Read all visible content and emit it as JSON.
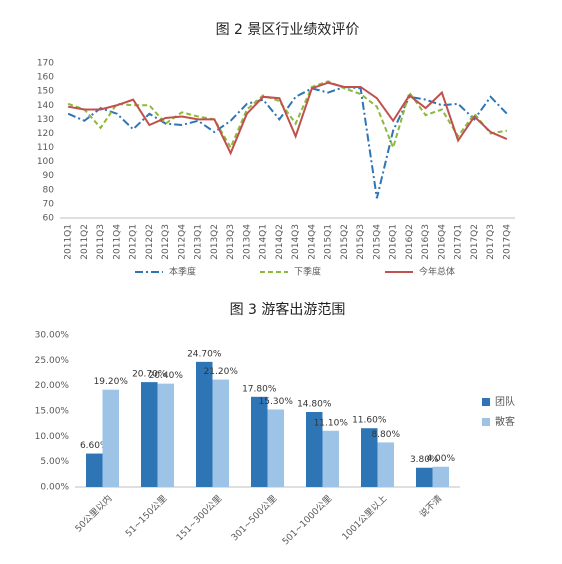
{
  "chart_data": [
    {
      "type": "line",
      "title": "图 2 景区行业绩效评价",
      "categories": [
        "2011Q1",
        "2011Q2",
        "2011Q3",
        "2011Q4",
        "2012Q1",
        "2012Q2",
        "2012Q3",
        "2012Q4",
        "2013Q1",
        "2013Q2",
        "2013Q3",
        "2013Q4",
        "2014Q1",
        "2014Q2",
        "2014Q3",
        "2014Q4",
        "2015Q1",
        "2015Q2",
        "2015Q3",
        "2015Q4",
        "2016Q1",
        "2016Q2",
        "2016Q3",
        "2016Q4",
        "2017Q1",
        "2017Q2",
        "2017Q3",
        "2017Q4"
      ],
      "series": [
        {
          "name": "本季度",
          "color": "#2e75b6",
          "dash": "8 3 2 3",
          "values": [
            134,
            129,
            138,
            134,
            123,
            134,
            127,
            126,
            129,
            121,
            129,
            141,
            144,
            130,
            146,
            152,
            149,
            153,
            152,
            74,
            122,
            146,
            144,
            140,
            141,
            130,
            146,
            134
          ]
        },
        {
          "name": "下季度",
          "color": "#8cb83c",
          "dash": "5 3",
          "values": [
            141,
            137,
            124,
            141,
            140,
            140,
            127,
            135,
            132,
            130,
            110,
            137,
            147,
            143,
            127,
            153,
            157,
            152,
            148,
            139,
            110,
            149,
            133,
            137,
            118,
            134,
            120,
            122
          ]
        },
        {
          "name": "今年总体",
          "color": "#c0504d",
          "dash": "",
          "values": [
            139,
            137,
            137,
            140,
            144,
            126,
            131,
            132,
            130,
            130,
            106,
            134,
            146,
            145,
            118,
            152,
            156,
            153,
            153,
            145,
            129,
            147,
            138,
            149,
            115,
            132,
            121,
            116
          ]
        }
      ],
      "ylim": [
        60,
        170
      ],
      "yticks": [
        60,
        70,
        80,
        90,
        100,
        110,
        120,
        130,
        140,
        150,
        160,
        170
      ],
      "grid": false,
      "legend": "bottom"
    },
    {
      "type": "bar",
      "title": "图 3 游客出游范围",
      "categories": [
        "50公里以内",
        "51~150公里",
        "151~300公里",
        "301~500公里",
        "501~1000公里",
        "1001公里以上",
        "说不清"
      ],
      "series": [
        {
          "name": "团队",
          "color": "#2e75b6",
          "values": [
            6.6,
            20.7,
            24.7,
            17.8,
            14.8,
            11.6,
            3.8
          ],
          "value_labels": [
            "6.60%",
            "20.70%",
            "24.70%",
            "17.80%",
            "14.80%",
            "11.60%",
            "3.80%"
          ]
        },
        {
          "name": "散客",
          "color": "#9dc3e6",
          "values": [
            19.2,
            20.4,
            21.2,
            15.3,
            11.1,
            8.8,
            4.0
          ],
          "value_labels": [
            "19.20%",
            "20.40%",
            "21.20%",
            "15.30%",
            "11.10%",
            "8.80%",
            "4.00%"
          ]
        }
      ],
      "ylim": [
        0,
        30
      ],
      "yticks": [
        {
          "value": 0,
          "label": "0.00%"
        },
        {
          "value": 5,
          "label": "5.00%"
        },
        {
          "value": 10,
          "label": "10.00%"
        },
        {
          "value": 15,
          "label": "15.00%"
        },
        {
          "value": 20,
          "label": "20.00%"
        },
        {
          "value": 25,
          "label": "25.00%"
        },
        {
          "value": 30,
          "label": "30.00%"
        }
      ],
      "grid": false,
      "legend": "right"
    }
  ]
}
